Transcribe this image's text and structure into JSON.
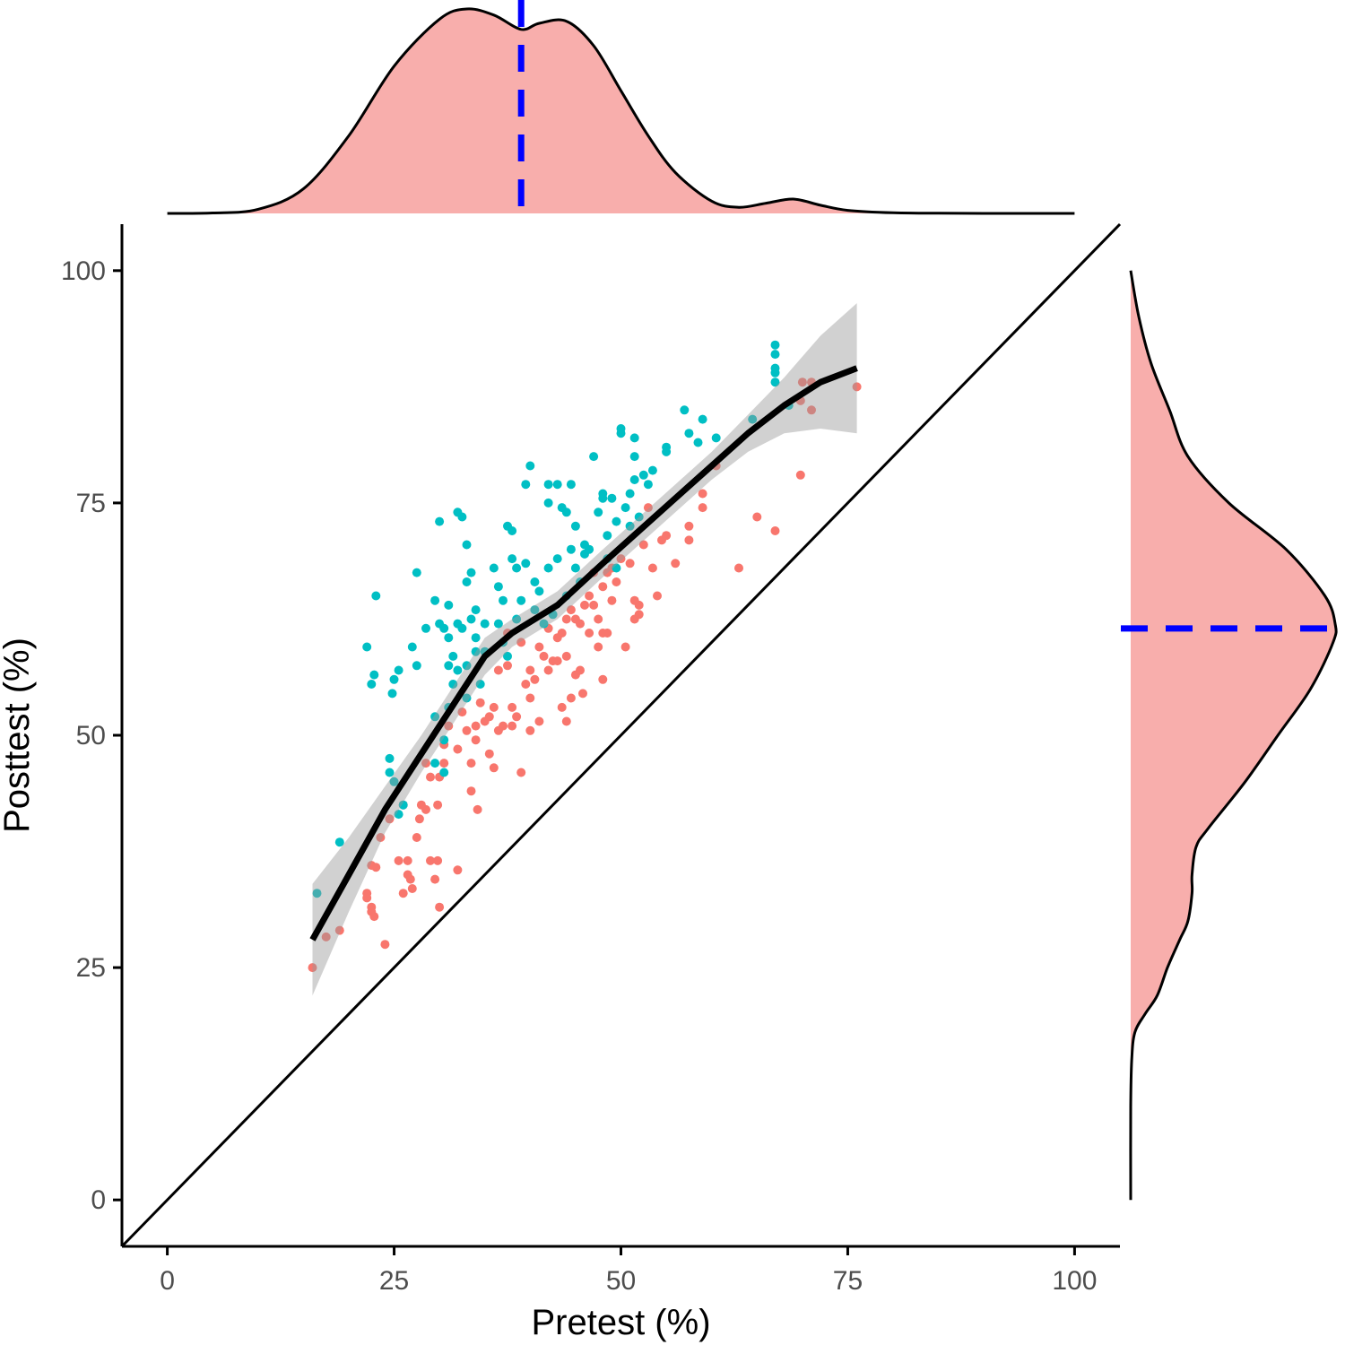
{
  "chart_data": {
    "type": "scatter",
    "title": "",
    "xlabel": "Pretest (%)",
    "ylabel": "Posttest (%)",
    "xlim": [
      -5,
      105
    ],
    "ylim": [
      -5,
      105
    ],
    "xticks": [
      "0",
      "25",
      "50",
      "75",
      "100"
    ],
    "yticks": [
      "0",
      "25",
      "50",
      "75",
      "100"
    ],
    "grid": false,
    "legend": "none",
    "colors": {
      "group_a": "#F8766D",
      "group_b": "#00BFC4",
      "smooth": "#000000",
      "ribbon": "#999999",
      "density_fill": "#F8AEAC",
      "mean_line": "#0000FF"
    },
    "reference_line": {
      "type": "identity",
      "slope": 1,
      "intercept": 0
    },
    "x_mean": 39,
    "y_mean": 61.5,
    "smooth": {
      "x": [
        16,
        20,
        24,
        28,
        32,
        35,
        38,
        43,
        48,
        52,
        56,
        60,
        64,
        68,
        72,
        76
      ],
      "y": [
        28,
        35,
        42,
        48,
        54,
        58.5,
        61,
        64,
        68.5,
        72,
        75.5,
        79,
        82.5,
        85.5,
        88,
        89.5
      ],
      "lower": [
        22,
        31,
        39.5,
        46,
        52,
        56.5,
        59.5,
        62.5,
        67,
        70.5,
        74,
        77.5,
        80.5,
        82.5,
        83,
        82.5
      ],
      "upper": [
        34,
        39,
        44.5,
        50,
        56,
        60.5,
        62.5,
        65.5,
        70,
        73.5,
        77,
        80.5,
        84.5,
        88.5,
        93,
        96.5
      ]
    },
    "x_density": {
      "x": [
        0,
        5,
        10,
        15,
        20,
        25,
        30,
        33,
        36,
        39,
        41,
        44,
        47,
        50,
        53,
        56,
        60,
        63,
        66,
        69,
        72,
        75,
        80,
        85,
        90,
        95,
        100
      ],
      "density": [
        0,
        0.002,
        0.02,
        0.12,
        0.38,
        0.72,
        0.95,
        1.0,
        0.97,
        0.9,
        0.93,
        0.94,
        0.82,
        0.6,
        0.38,
        0.2,
        0.06,
        0.03,
        0.05,
        0.07,
        0.04,
        0.015,
        0.003,
        0.001,
        0,
        0,
        0
      ]
    },
    "y_density": {
      "y": [
        0,
        10,
        15,
        18,
        20,
        22,
        25,
        28,
        30,
        33,
        35,
        38,
        40,
        45,
        50,
        55,
        60,
        62,
        65,
        70,
        75,
        80,
        85,
        90,
        95,
        100
      ],
      "density": [
        0,
        0,
        0.005,
        0.02,
        0.07,
        0.13,
        0.18,
        0.24,
        0.28,
        0.3,
        0.3,
        0.32,
        0.38,
        0.56,
        0.72,
        0.88,
        0.99,
        1.0,
        0.95,
        0.76,
        0.48,
        0.28,
        0.19,
        0.1,
        0.04,
        0.0
      ]
    },
    "series": [
      {
        "points": [
          [
            16,
            25
          ],
          [
            17.5,
            28.3
          ],
          [
            19,
            29
          ],
          [
            22,
            33
          ],
          [
            22,
            32.5
          ],
          [
            22.5,
            31.5
          ],
          [
            22.5,
            31
          ],
          [
            22.8,
            30.5
          ],
          [
            22.5,
            36
          ],
          [
            23,
            35.8
          ],
          [
            23.5,
            39
          ],
          [
            24,
            27.5
          ],
          [
            24.5,
            41
          ],
          [
            25.5,
            36.5
          ],
          [
            26,
            42.5
          ],
          [
            26,
            33
          ],
          [
            26.5,
            36.5
          ],
          [
            26.5,
            35
          ],
          [
            26.8,
            34.5
          ],
          [
            27,
            33.5
          ],
          [
            27.5,
            39
          ],
          [
            27.8,
            41
          ],
          [
            28,
            42.5
          ],
          [
            28.5,
            42
          ],
          [
            28.5,
            47
          ],
          [
            29,
            36.5
          ],
          [
            29,
            45.5
          ],
          [
            29.5,
            34.5
          ],
          [
            29.8,
            42.5
          ],
          [
            29.8,
            36.5
          ],
          [
            30,
            31.5
          ],
          [
            30,
            45.5
          ],
          [
            30.5,
            47
          ],
          [
            30.5,
            49
          ],
          [
            31,
            51
          ],
          [
            32,
            48.5
          ],
          [
            32,
            35.5
          ],
          [
            32.5,
            52.5
          ],
          [
            33,
            50.5
          ],
          [
            33.5,
            44
          ],
          [
            33.5,
            47
          ],
          [
            34,
            51
          ],
          [
            34,
            49.5
          ],
          [
            34.2,
            42
          ],
          [
            34.5,
            53.5
          ],
          [
            35,
            51.5
          ],
          [
            35.5,
            48
          ],
          [
            35.5,
            52
          ],
          [
            36,
            46.5
          ],
          [
            36,
            53
          ],
          [
            36.5,
            57
          ],
          [
            36.5,
            50.5
          ],
          [
            37,
            51
          ],
          [
            37.5,
            61
          ],
          [
            37.5,
            57.5
          ],
          [
            38,
            53
          ],
          [
            38,
            51
          ],
          [
            38.5,
            52
          ],
          [
            39,
            60
          ],
          [
            39,
            46
          ],
          [
            39.5,
            55.5
          ],
          [
            40,
            57
          ],
          [
            40,
            54
          ],
          [
            40,
            50.5
          ],
          [
            40.5,
            56
          ],
          [
            41,
            59.5
          ],
          [
            41,
            51.5
          ],
          [
            41.5,
            58.5
          ],
          [
            42,
            61.5
          ],
          [
            42,
            57
          ],
          [
            42.5,
            58
          ],
          [
            43,
            60.5
          ],
          [
            43,
            58
          ],
          [
            43.5,
            61
          ],
          [
            43.5,
            53
          ],
          [
            44,
            62.5
          ],
          [
            44,
            58.5
          ],
          [
            44,
            51.5
          ],
          [
            44.5,
            63.5
          ],
          [
            44.5,
            54
          ],
          [
            45,
            62.5
          ],
          [
            45,
            56.5
          ],
          [
            45.5,
            62
          ],
          [
            45.5,
            57
          ],
          [
            45.8,
            54.5
          ],
          [
            46,
            64
          ],
          [
            46.5,
            65
          ],
          [
            46.5,
            61
          ],
          [
            47,
            67.5
          ],
          [
            47,
            64
          ],
          [
            47.5,
            62.5
          ],
          [
            47.5,
            59.5
          ],
          [
            48,
            66
          ],
          [
            48,
            61
          ],
          [
            48,
            56
          ],
          [
            48.5,
            67.5
          ],
          [
            48.5,
            61
          ],
          [
            49,
            68
          ],
          [
            49,
            64.5
          ],
          [
            49.5,
            66.5
          ],
          [
            50,
            69
          ],
          [
            50.5,
            59.5
          ],
          [
            51,
            68.5
          ],
          [
            51.5,
            64.5
          ],
          [
            51.5,
            62.5
          ],
          [
            52,
            63
          ],
          [
            52,
            64
          ],
          [
            52.5,
            70.5
          ],
          [
            53,
            74.5
          ],
          [
            53.5,
            68
          ],
          [
            54,
            65
          ],
          [
            54.5,
            71
          ],
          [
            55,
            71.5
          ],
          [
            56,
            68.5
          ],
          [
            57.5,
            71
          ],
          [
            57.5,
            72.5
          ],
          [
            59,
            74.5
          ],
          [
            59,
            76
          ],
          [
            60.5,
            79
          ],
          [
            63,
            68
          ],
          [
            65,
            73.5
          ],
          [
            67,
            72
          ],
          [
            69.8,
            78
          ],
          [
            69.8,
            86
          ],
          [
            70,
            88
          ],
          [
            71,
            85
          ],
          [
            71,
            88
          ],
          [
            76,
            87.5
          ]
        ]
      },
      {
        "points": [
          [
            16.5,
            33
          ],
          [
            19,
            38.5
          ],
          [
            22,
            59.5
          ],
          [
            22.5,
            55.5
          ],
          [
            22.8,
            56.5
          ],
          [
            23,
            65
          ],
          [
            24.5,
            47.5
          ],
          [
            24.5,
            46
          ],
          [
            24.8,
            54.5
          ],
          [
            25,
            56
          ],
          [
            25,
            45
          ],
          [
            25.5,
            57
          ],
          [
            25.5,
            41.5
          ],
          [
            26,
            42.5
          ],
          [
            27,
            59.5
          ],
          [
            27.5,
            57.5
          ],
          [
            27.5,
            67.5
          ],
          [
            28.5,
            61.5
          ],
          [
            29.5,
            64.5
          ],
          [
            29.5,
            52
          ],
          [
            29.5,
            47
          ],
          [
            30,
            73
          ],
          [
            30,
            62
          ],
          [
            30.5,
            61.5
          ],
          [
            30.5,
            49.5
          ],
          [
            30.5,
            46
          ],
          [
            31,
            60.5
          ],
          [
            31,
            57.5
          ],
          [
            31,
            53
          ],
          [
            31,
            64
          ],
          [
            31.5,
            58.5
          ],
          [
            31.5,
            55.5
          ],
          [
            32,
            74
          ],
          [
            32,
            62
          ],
          [
            32,
            57
          ],
          [
            32.5,
            73.5
          ],
          [
            32.5,
            61.5
          ],
          [
            33,
            70.5
          ],
          [
            33,
            66.5
          ],
          [
            33,
            57.5
          ],
          [
            33,
            54
          ],
          [
            33.5,
            67.5
          ],
          [
            33.5,
            62.5
          ],
          [
            34,
            63.5
          ],
          [
            34,
            60.5
          ],
          [
            34,
            59
          ],
          [
            34.5,
            55.5
          ],
          [
            35,
            62
          ],
          [
            35,
            59
          ],
          [
            36,
            68
          ],
          [
            36.5,
            66
          ],
          [
            36.5,
            62
          ],
          [
            37,
            64.5
          ],
          [
            37,
            60
          ],
          [
            37.5,
            72.5
          ],
          [
            37.5,
            58.5
          ],
          [
            38,
            72
          ],
          [
            38,
            69
          ],
          [
            38.5,
            68
          ],
          [
            38.5,
            62.5
          ],
          [
            39,
            64.5
          ],
          [
            39.5,
            77
          ],
          [
            39.5,
            68.5
          ],
          [
            40,
            79
          ],
          [
            40.5,
            66.5
          ],
          [
            40.5,
            63.5
          ],
          [
            41,
            65.5
          ],
          [
            41.5,
            62
          ],
          [
            42,
            75
          ],
          [
            42,
            77
          ],
          [
            42,
            68
          ],
          [
            42.5,
            63
          ],
          [
            43,
            77
          ],
          [
            43,
            69
          ],
          [
            43.5,
            74.5
          ],
          [
            44,
            74
          ],
          [
            44,
            65
          ],
          [
            44.5,
            77
          ],
          [
            44.5,
            70
          ],
          [
            45,
            72.5
          ],
          [
            45,
            68
          ],
          [
            45.5,
            66.5
          ],
          [
            46,
            70.5
          ],
          [
            46,
            69.5
          ],
          [
            46.5,
            70
          ],
          [
            47,
            80
          ],
          [
            47.5,
            74
          ],
          [
            48,
            76
          ],
          [
            48,
            75.5
          ],
          [
            48.5,
            71.5
          ],
          [
            48.5,
            69
          ],
          [
            49,
            75.5
          ],
          [
            49.5,
            68
          ],
          [
            49.5,
            73
          ],
          [
            50,
            82.5
          ],
          [
            50,
            83
          ],
          [
            50.5,
            74.5
          ],
          [
            51,
            76
          ],
          [
            51,
            72.5
          ],
          [
            51.5,
            82
          ],
          [
            51.5,
            80
          ],
          [
            51.5,
            77.5
          ],
          [
            52,
            73.5
          ],
          [
            52.5,
            78
          ],
          [
            53,
            77
          ],
          [
            53.5,
            78.5
          ],
          [
            55,
            81
          ],
          [
            55,
            80.5
          ],
          [
            57,
            85
          ],
          [
            57.5,
            82.5
          ],
          [
            58.5,
            81.5
          ],
          [
            59,
            84
          ],
          [
            60.5,
            82
          ],
          [
            64.5,
            84
          ],
          [
            67,
            92
          ],
          [
            67,
            91
          ],
          [
            67,
            89.5
          ],
          [
            67,
            89
          ],
          [
            67,
            88
          ],
          [
            68.5,
            85.5
          ]
        ]
      }
    ]
  }
}
